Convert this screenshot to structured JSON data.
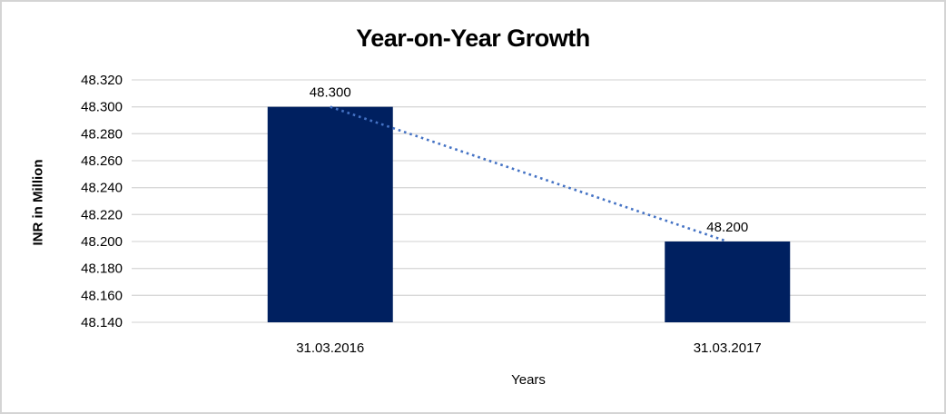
{
  "chart_data": {
    "type": "bar",
    "title": "Year-on-Year Growth",
    "xlabel": "Years",
    "ylabel": "INR in Million",
    "categories": [
      "31.03.2016",
      "31.03.2017"
    ],
    "series": [
      {
        "name": "INR in Million",
        "values": [
          48.3,
          48.2
        ]
      }
    ],
    "data_labels": [
      "48.300",
      "48.200"
    ],
    "ylim": [
      48.14,
      48.32
    ],
    "ytick_step": 0.02,
    "ytick_labels": [
      "48.320",
      "48.300",
      "48.280",
      "48.260",
      "48.240",
      "48.220",
      "48.200",
      "48.180",
      "48.160",
      "48.140"
    ],
    "grid": true,
    "legend_position": "none",
    "bar_color": "#002060",
    "trendline": {
      "type": "linear",
      "style": "dotted",
      "color": "#4472C4"
    },
    "gridline_color": "#D9D9D9",
    "text_color": "#000000",
    "background": "#FFFFFF",
    "frame_border_color": "#D4D4D4"
  }
}
